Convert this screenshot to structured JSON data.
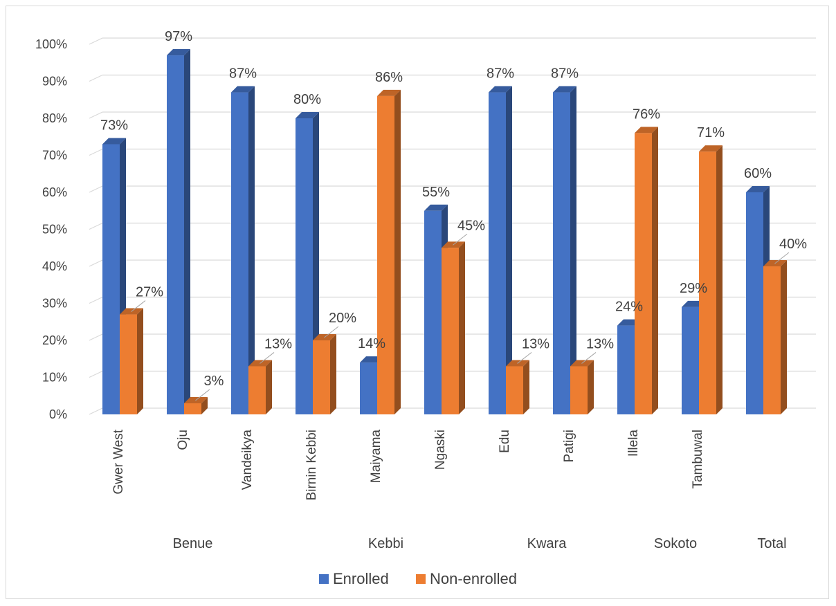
{
  "chart_data": {
    "type": "bar",
    "style": "3d-clustered-column",
    "title": "",
    "xlabel": "",
    "ylabel": "",
    "ylim": [
      0,
      100
    ],
    "y_ticks": [
      "0%",
      "10%",
      "20%",
      "30%",
      "40%",
      "50%",
      "60%",
      "70%",
      "80%",
      "90%",
      "100%"
    ],
    "grid": true,
    "legend_position": "bottom",
    "categories": [
      "Gwer West",
      "Oju",
      "Vandeikya",
      "Birnin Kebbi",
      "Maiyama",
      "Ngaski",
      "Edu",
      "Patigi",
      "Illela",
      "Tambuwal",
      ""
    ],
    "groups": [
      {
        "label": "Benue",
        "categories": [
          "Gwer West",
          "Oju",
          "Vandeikya"
        ]
      },
      {
        "label": "Kebbi",
        "categories": [
          "Birnin Kebbi",
          "Maiyama",
          "Ngaski"
        ]
      },
      {
        "label": "Kwara",
        "categories": [
          "Edu",
          "Patigi"
        ]
      },
      {
        "label": "Sokoto",
        "categories": [
          "Illela",
          "Tambuwal"
        ]
      },
      {
        "label": "Total",
        "categories": [
          ""
        ]
      }
    ],
    "series": [
      {
        "name": "Enrolled",
        "color": "#4472C4",
        "values": [
          73,
          97,
          87,
          80,
          14,
          55,
          87,
          87,
          24,
          29,
          60
        ],
        "labels": [
          "73%",
          "97%",
          "87%",
          "80%",
          "14%",
          "55%",
          "87%",
          "87%",
          "24%",
          "29%",
          "60%"
        ]
      },
      {
        "name": "Non-enrolled",
        "color": "#ED7D31",
        "values": [
          27,
          3,
          13,
          20,
          86,
          45,
          13,
          13,
          76,
          71,
          40
        ],
        "labels": [
          "27%",
          "3%",
          "13%",
          "20%",
          "86%",
          "45%",
          "13%",
          "13%",
          "76%",
          "71%",
          "40%"
        ]
      }
    ]
  }
}
